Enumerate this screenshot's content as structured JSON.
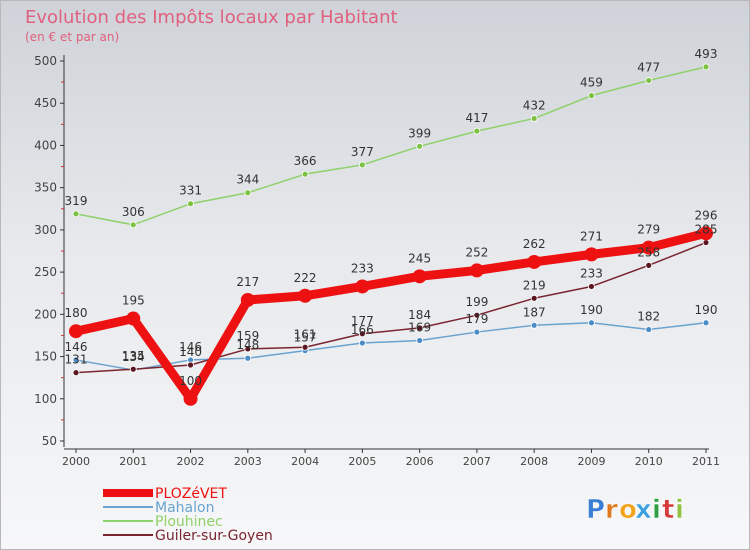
{
  "chart_data": {
    "type": "line",
    "title": "Evolution des Impôts locaux par Habitant",
    "subtitle": "(en € et par an)",
    "categories": [
      "2000",
      "2001",
      "2002",
      "2003",
      "2004",
      "2005",
      "2006",
      "2007",
      "2008",
      "2009",
      "2010",
      "2011"
    ],
    "ylim": [
      50,
      500
    ],
    "yticks": [
      50,
      100,
      150,
      200,
      250,
      300,
      350,
      400,
      450,
      500
    ],
    "grid": false,
    "legend_position": "bottom-left",
    "series": [
      {
        "name": "Plouhinec",
        "color": "#8fd16a",
        "marker": "#7cc142",
        "values": [
          319,
          306,
          331,
          344,
          366,
          377,
          399,
          417,
          432,
          459,
          477,
          493
        ],
        "labels": [
          "319",
          "306",
          "331",
          "344",
          "366",
          "377",
          "399",
          "417",
          "432",
          "459",
          "477",
          "493"
        ]
      },
      {
        "name": "Mahalon",
        "color": "#6aa3cf",
        "marker": "#4a8cc6",
        "values": [
          146,
          134,
          146,
          148,
          157,
          166,
          169,
          179,
          187,
          190,
          182,
          190
        ],
        "labels": [
          "146",
          "134",
          "146",
          "148",
          "157",
          "166",
          "169",
          "179",
          "187",
          "190",
          "182",
          "190"
        ]
      },
      {
        "name": "Guiler-sur-Goyen",
        "color": "#7a2530",
        "marker": "#5a1620",
        "values": [
          131,
          135,
          140,
          159,
          161,
          177,
          184,
          199,
          219,
          233,
          258,
          285
        ],
        "labels": [
          "131",
          "135",
          "140",
          "159",
          "161",
          "177",
          "184",
          "199",
          "219",
          "233",
          "258",
          "285"
        ]
      },
      {
        "name": "PLOZéVET",
        "color": "#ee1111",
        "marker": "#ee1111",
        "values": [
          180,
          195,
          100,
          217,
          222,
          233,
          245,
          252,
          262,
          271,
          279,
          296
        ],
        "labels": [
          "180",
          "195",
          "100",
          "217",
          "222",
          "233",
          "245",
          "252",
          "262",
          "271",
          "279",
          "296"
        ]
      }
    ],
    "legend": [
      {
        "name": "PLOZéVET",
        "color": "#ee1111",
        "thick": true
      },
      {
        "name": "Mahalon",
        "color": "#6aa3cf",
        "thick": false
      },
      {
        "name": "Plouhinec",
        "color": "#8fd16a",
        "thick": false
      },
      {
        "name": "Guiler-sur-Goyen",
        "color": "#7a2530",
        "thick": false
      }
    ]
  },
  "logo": {
    "letters": [
      "P",
      "r",
      "o",
      "x",
      "i",
      "t",
      "i"
    ],
    "colors": [
      "#3a7fd5",
      "#e07a20",
      "#f2a31e",
      "#3aa0e0",
      "#2ea043",
      "#d63b3b",
      "#8fc23f"
    ]
  }
}
